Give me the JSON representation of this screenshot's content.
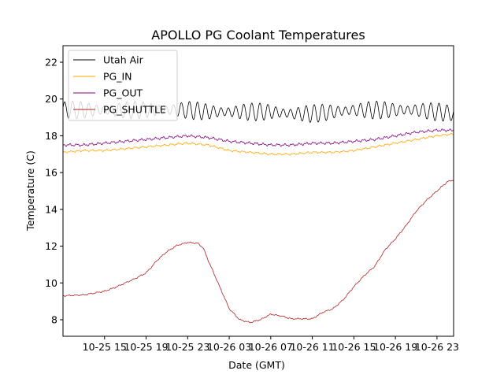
{
  "chart_data": {
    "type": "line",
    "title": "APOLLO PG Coolant Temperatures",
    "xlabel": "Date (GMT)",
    "ylabel": "Temperature (C)",
    "x_unit": "hours since 10-25 11:00 GMT",
    "xlim": [
      0,
      37.6
    ],
    "ylim": [
      7.1,
      22.9
    ],
    "x_ticks": [
      {
        "value": 4,
        "label": "10-25 15"
      },
      {
        "value": 8,
        "label": "10-25 19"
      },
      {
        "value": 12,
        "label": "10-25 23"
      },
      {
        "value": 16,
        "label": "10-26 03"
      },
      {
        "value": 20,
        "label": "10-26 07"
      },
      {
        "value": 24,
        "label": "10-26 11"
      },
      {
        "value": 28,
        "label": "10-26 15"
      },
      {
        "value": 32,
        "label": "10-26 19"
      },
      {
        "value": 36,
        "label": "10-26 23"
      }
    ],
    "y_ticks": [
      8,
      10,
      12,
      14,
      16,
      18,
      20,
      22
    ],
    "grid": false,
    "legend_position": "upper-left",
    "series": [
      {
        "name": "Utah Air",
        "color": "#000000",
        "x": [
          0,
          2,
          4,
          6,
          8,
          10,
          12,
          14,
          16,
          18,
          20,
          22,
          24,
          26,
          28,
          30,
          32,
          34,
          36,
          37.6
        ],
        "y": [
          19.4,
          19.4,
          19.4,
          19.4,
          19.4,
          19.4,
          19.4,
          19.3,
          19.3,
          19.3,
          19.3,
          19.2,
          19.2,
          19.3,
          19.4,
          19.4,
          19.4,
          19.4,
          19.3,
          19.2
        ],
        "oscillation": 0.35
      },
      {
        "name": "PG_IN",
        "color": "#ffa500",
        "x": [
          0,
          2,
          4,
          6,
          8,
          10,
          12,
          14,
          16,
          18,
          20,
          22,
          24,
          26,
          28,
          30,
          32,
          34,
          36,
          37.6
        ],
        "y": [
          17.1,
          17.2,
          17.2,
          17.3,
          17.4,
          17.5,
          17.6,
          17.5,
          17.2,
          17.1,
          17.0,
          17.0,
          17.1,
          17.1,
          17.2,
          17.4,
          17.6,
          17.8,
          18.0,
          18.1
        ],
        "oscillation": 0.06
      },
      {
        "name": "PG_OUT",
        "color": "#800080",
        "x": [
          0,
          2,
          4,
          6,
          8,
          10,
          12,
          14,
          16,
          18,
          20,
          22,
          24,
          26,
          28,
          30,
          32,
          34,
          36,
          37.6
        ],
        "y": [
          17.5,
          17.5,
          17.6,
          17.7,
          17.8,
          17.9,
          18.0,
          17.9,
          17.7,
          17.6,
          17.5,
          17.5,
          17.6,
          17.6,
          17.7,
          17.8,
          18.0,
          18.2,
          18.3,
          18.3
        ],
        "oscillation": 0.08
      },
      {
        "name": "PG_SHUTTLE",
        "color": "#b22222",
        "x": [
          0,
          2,
          3,
          4,
          5,
          6,
          7,
          8,
          8.5,
          9,
          10,
          11,
          12,
          13,
          13.5,
          14,
          15,
          16,
          17,
          18,
          19,
          20,
          21,
          22,
          23,
          24,
          25,
          26,
          27,
          28,
          29,
          30,
          31,
          32,
          33,
          34,
          35,
          36,
          37,
          37.6
        ],
        "y": [
          9.3,
          9.35,
          9.45,
          9.55,
          9.75,
          10.0,
          10.25,
          10.55,
          10.85,
          11.2,
          11.7,
          12.05,
          12.2,
          12.15,
          11.9,
          11.2,
          9.9,
          8.6,
          8.0,
          7.85,
          8.0,
          8.3,
          8.2,
          8.05,
          8.05,
          8.05,
          8.4,
          8.6,
          9.1,
          9.8,
          10.4,
          10.9,
          11.8,
          12.4,
          13.1,
          13.9,
          14.5,
          15.0,
          15.5,
          15.6
        ],
        "oscillation": 0.04
      }
    ]
  }
}
